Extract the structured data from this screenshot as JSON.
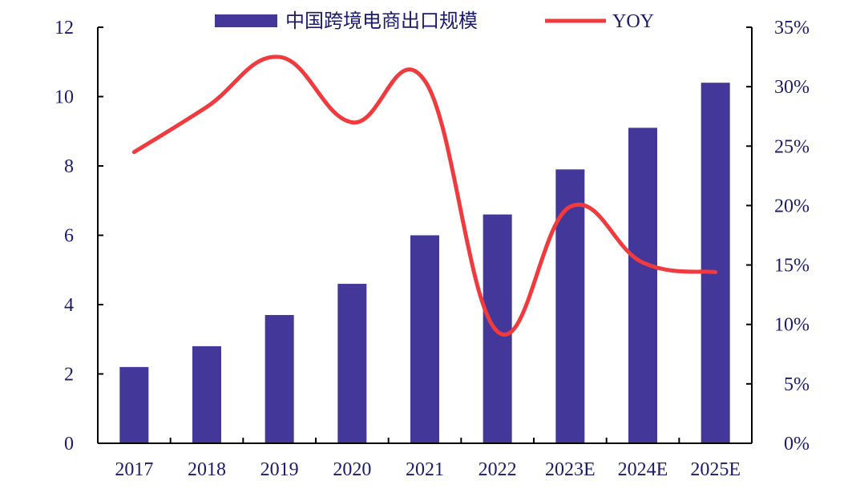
{
  "chart_data": {
    "type": "bar+line",
    "categories": [
      "2017",
      "2018",
      "2019",
      "2020",
      "2021",
      "2022",
      "2023E",
      "2024E",
      "2025E"
    ],
    "series": [
      {
        "name": "中国跨境电商出口规模",
        "type": "bar",
        "axis": "left",
        "values": [
          2.2,
          2.8,
          3.7,
          4.6,
          6.0,
          6.6,
          7.9,
          9.1,
          10.4
        ]
      },
      {
        "name": "YOY",
        "type": "line",
        "axis": "right",
        "values": [
          24.5,
          28.3,
          32.5,
          27.0,
          30.5,
          9.4,
          19.9,
          15.2,
          14.4
        ]
      }
    ],
    "y_left": {
      "ylim": [
        0,
        12
      ],
      "ticks": [
        "0",
        "2",
        "4",
        "6",
        "8",
        "10",
        "12"
      ]
    },
    "y_right": {
      "ylim": [
        0,
        35
      ],
      "ticks": [
        "0%",
        "5%",
        "10%",
        "15%",
        "20%",
        "25%",
        "30%",
        "35%"
      ]
    },
    "title": "",
    "xlabel": "",
    "ylabel": "",
    "grid": false,
    "legend_position": "top-center",
    "colors": {
      "bar": "#43389a",
      "line": "#f03a3e",
      "text": "#1a1a6e",
      "axis": "#000000"
    }
  }
}
